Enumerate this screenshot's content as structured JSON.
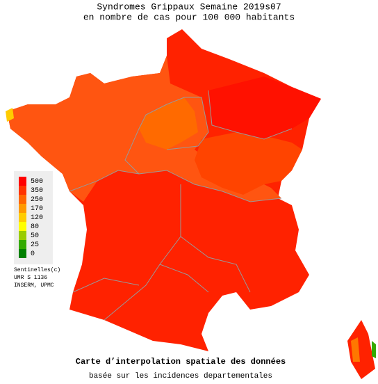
{
  "header": {
    "title": "Syndromes Grippaux Semaine 2019s07",
    "subtitle": "en nombre de cas pour 100 000 habitants"
  },
  "legend": {
    "items": [
      {
        "value": 500,
        "color": "#ff0000"
      },
      {
        "value": 350,
        "color": "#ff3300"
      },
      {
        "value": 250,
        "color": "#ff6600"
      },
      {
        "value": 170,
        "color": "#ff9900"
      },
      {
        "value": 120,
        "color": "#ffcc00"
      },
      {
        "value": 80,
        "color": "#ffff00"
      },
      {
        "value": 50,
        "color": "#99cc00"
      },
      {
        "value": 25,
        "color": "#33aa00"
      },
      {
        "value": 0,
        "color": "#008000"
      }
    ]
  },
  "credits": [
    "Sentinelles(c)",
    "UMR S 1136",
    "INSERM, UPMC"
  ],
  "footer": {
    "title": "Carte d’interpolation spatiale des données",
    "subtitle": "basée sur les incidences departementales"
  }
}
